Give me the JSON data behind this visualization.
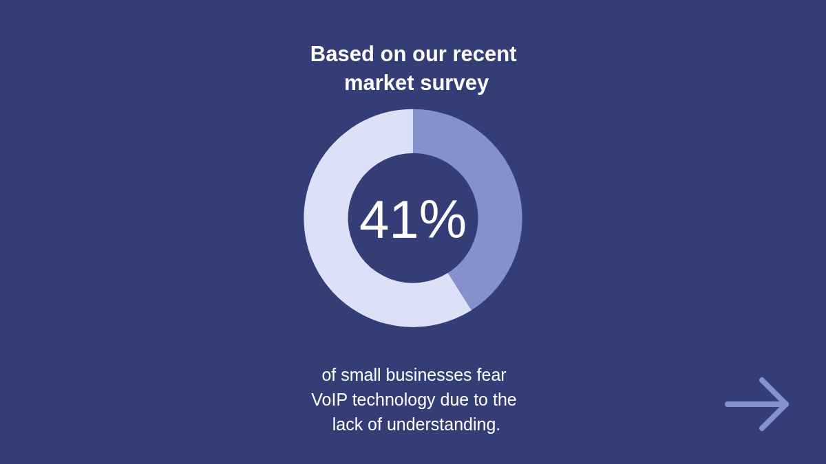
{
  "chart_data": {
    "type": "donut",
    "title": "Based on our recent market survey",
    "subtitle": "of small businesses fear VoIP technology due to the lack of understanding.",
    "categories": [
      null,
      null
    ],
    "values": [
      41,
      59
    ],
    "colors": [
      "#8690cd",
      "#dde1f7"
    ],
    "annotations": [
      "41%"
    ]
  }
}
